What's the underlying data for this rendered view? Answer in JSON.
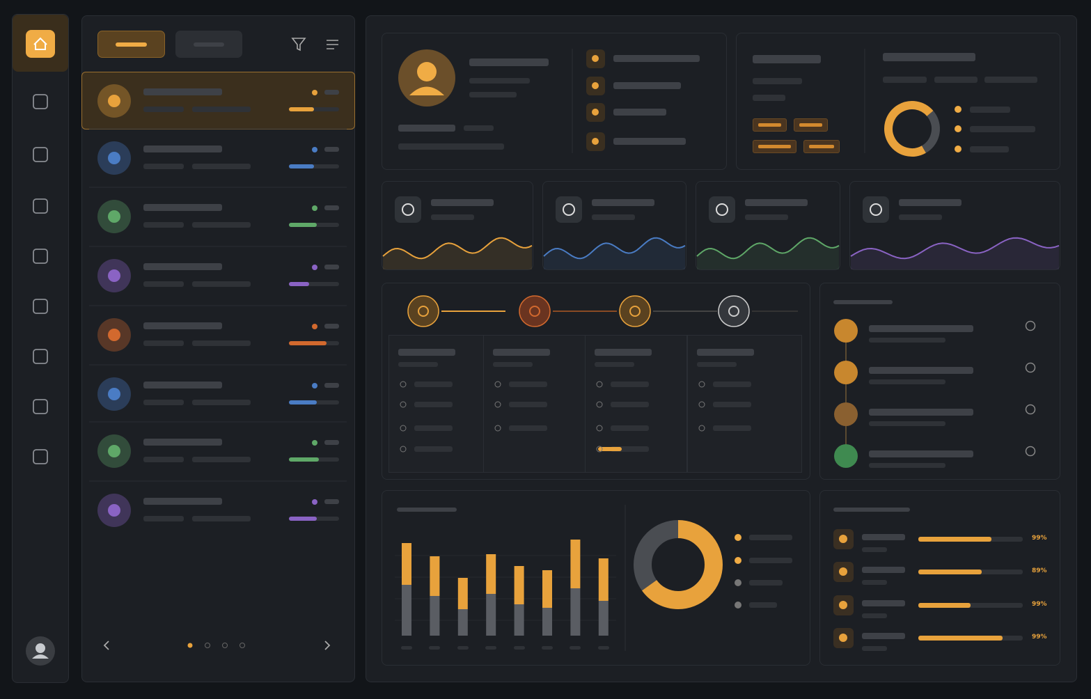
{
  "bar_chart": {
    "type": "bar",
    "ylim": [
      0,
      140
    ],
    "series": [
      {
        "color": "#5a5d63",
        "values": [
          73,
          57,
          38,
          60,
          45,
          40,
          68,
          50
        ]
      },
      {
        "color": "#e8a23c",
        "values": [
          60,
          57,
          45,
          57,
          55,
          54,
          70,
          61
        ]
      }
    ]
  },
  "donut_chart": {
    "type": "pie",
    "values": [
      65,
      35
    ],
    "colors": [
      "#e8a23c",
      "#4a4d52"
    ]
  },
  "summary_donut": {
    "type": "pie",
    "values": [
      72,
      28
    ],
    "colors": [
      "#e8a23c",
      "#4a4d52"
    ]
  },
  "progress": {
    "labels": [
      "99%",
      "89%",
      "99%",
      "99%"
    ]
  }
}
